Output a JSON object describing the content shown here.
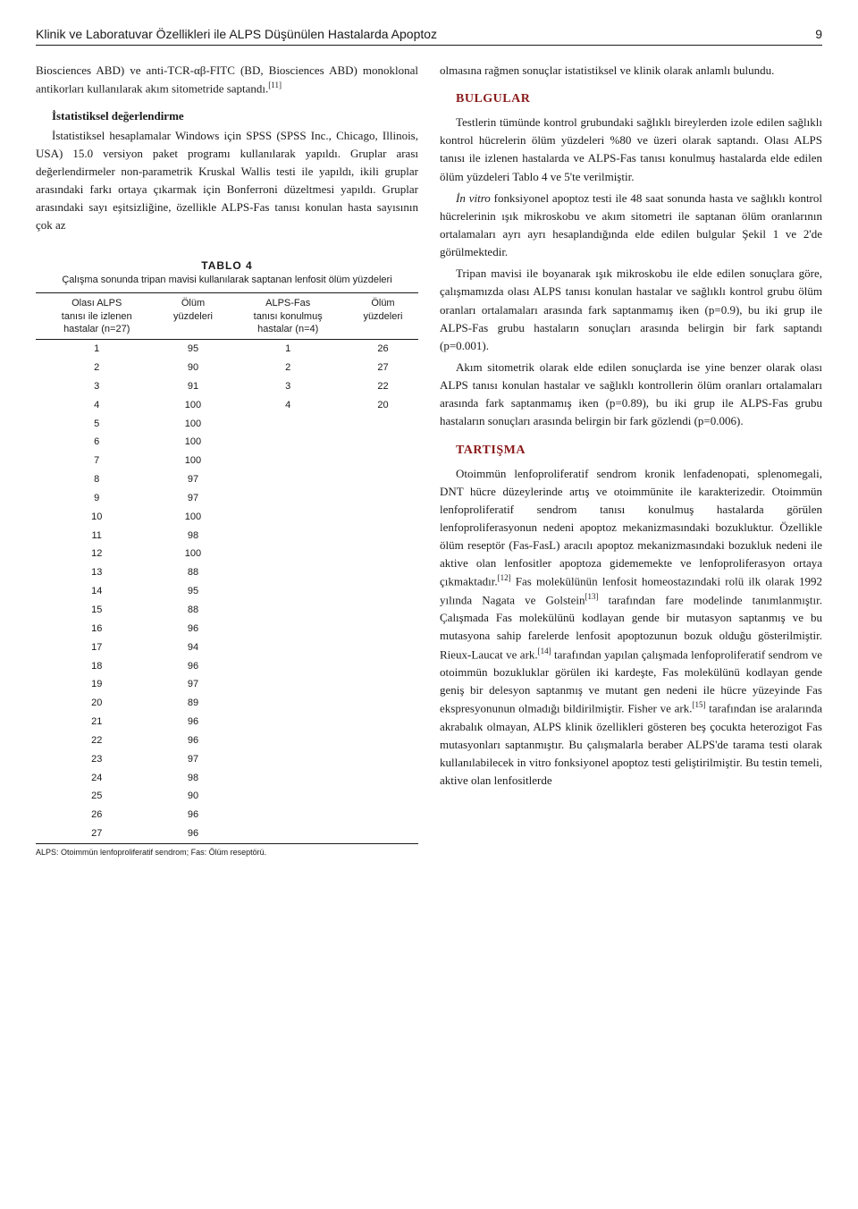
{
  "header": {
    "running_title": "Klinik ve Laboratuvar Özellikleri ile ALPS Düşünülen Hastalarda Apoptoz",
    "page": "9"
  },
  "left": {
    "p1": "Biosciences ABD) ve anti-TCR-αβ-FITC (BD, Biosciences ABD) monoklonal antikorları kullanılarak akım sitometride saptandı.",
    "sup1": "[11]",
    "sub1": "İstatistiksel değerlendirme",
    "p2": "İstatistiksel hesaplamalar Windows için SPSS (SPSS Inc., Chicago, Illinois, USA) 15.0 versiyon paket programı kullanılarak yapıldı. Gruplar arası değerlendirmeler non-parametrik Kruskal Wallis testi ile yapıldı, ikili gruplar arasındaki farkı ortaya çıkarmak için Bonferroni düzeltmesi yapıldı. Gruplar arasındaki sayı eşitsizliğine, özellikle ALPS-Fas tanısı konulan hasta sayısının çok az"
  },
  "table4": {
    "title": "TABLO 4",
    "caption": "Çalışma sonunda tripan mavisi kullanılarak saptanan lenfosit ölüm yüzdeleri",
    "columns": {
      "c1a": "Olası ALPS",
      "c1b": "tanısı ile izlenen",
      "c1c": "hastalar (n=27)",
      "c2a": "Ölüm",
      "c2b": "yüzdeleri",
      "c3a": "ALPS-Fas",
      "c3b": "tanısı konulmuş",
      "c3c": "hastalar (n=4)",
      "c4a": "Ölüm",
      "c4b": "yüzdeleri"
    },
    "rows": [
      [
        "1",
        "95",
        "1",
        "26"
      ],
      [
        "2",
        "90",
        "2",
        "27"
      ],
      [
        "3",
        "91",
        "3",
        "22"
      ],
      [
        "4",
        "100",
        "4",
        "20"
      ],
      [
        "5",
        "100",
        "",
        ""
      ],
      [
        "6",
        "100",
        "",
        ""
      ],
      [
        "7",
        "100",
        "",
        ""
      ],
      [
        "8",
        "97",
        "",
        ""
      ],
      [
        "9",
        "97",
        "",
        ""
      ],
      [
        "10",
        "100",
        "",
        ""
      ],
      [
        "11",
        "98",
        "",
        ""
      ],
      [
        "12",
        "100",
        "",
        ""
      ],
      [
        "13",
        "88",
        "",
        ""
      ],
      [
        "14",
        "95",
        "",
        ""
      ],
      [
        "15",
        "88",
        "",
        ""
      ],
      [
        "16",
        "96",
        "",
        ""
      ],
      [
        "17",
        "94",
        "",
        ""
      ],
      [
        "18",
        "96",
        "",
        ""
      ],
      [
        "19",
        "97",
        "",
        ""
      ],
      [
        "20",
        "89",
        "",
        ""
      ],
      [
        "21",
        "96",
        "",
        ""
      ],
      [
        "22",
        "96",
        "",
        ""
      ],
      [
        "23",
        "97",
        "",
        ""
      ],
      [
        "24",
        "98",
        "",
        ""
      ],
      [
        "25",
        "90",
        "",
        ""
      ],
      [
        "26",
        "96",
        "",
        ""
      ],
      [
        "27",
        "96",
        "",
        ""
      ]
    ],
    "footnote": "ALPS: Otoimmün lenfoproliferatif sendrom; Fas: Ölüm reseptörü."
  },
  "right": {
    "p1": "olmasına rağmen sonuçlar istatistiksel ve klinik olarak anlamlı bulundu.",
    "h_bulgular": "BULGULAR",
    "p2": "Testlerin tümünde kontrol grubundaki sağlıklı bireylerden izole edilen sağlıklı kontrol hücrelerin ölüm yüzdeleri %80 ve üzeri olarak saptandı. Olası ALPS tanısı ile izlenen hastalarda ve ALPS-Fas tanısı konulmuş hastalarda elde edilen ölüm yüzdeleri Tablo 4 ve 5'te verilmiştir.",
    "p3": "İn vitro fonksiyonel apoptoz testi ile 48 saat sonunda hasta ve sağlıklı kontrol hücrelerinin ışık mikroskobu ve akım sitometri ile saptanan ölüm oranlarının ortalamaları ayrı ayrı hesaplandığında elde edilen bulgular Şekil 1 ve 2'de görülmektedir.",
    "p4": "Tripan mavisi ile boyanarak ışık mikroskobu ile elde edilen sonuçlara göre, çalışmamızda olası ALPS tanısı konulan hastalar ve sağlıklı kontrol grubu ölüm oranları ortalamaları arasında fark saptanmamış iken (p=0.9), bu iki grup ile ALPS-Fas grubu hastaların sonuçları arasında belirgin bir fark saptandı (p=0.001).",
    "p5": "Akım sitometrik olarak elde edilen sonuçlarda ise yine benzer olarak olası ALPS tanısı konulan hastalar ve sağlıklı kontrollerin ölüm oranları ortalamaları arasında fark saptanmamış iken (p=0.89), bu iki grup ile ALPS-Fas grubu hastaların sonuçları arasında belirgin bir fark gözlendi (p=0.006).",
    "h_tartisma": "TARTIŞMA",
    "p6a": "Otoimmün lenfoproliferatif sendrom kronik lenfadenopati, splenomegali, DNT hücre düzeylerinde artış ve otoimmünite ile karakterizedir. Otoimmün lenfoproliferatif sendrom tanısı konulmuş hastalarda görülen lenfoproliferasyonun nedeni apoptoz mekanizmasındaki bozukluktur. Özellikle ölüm reseptör (Fas-FasL) aracılı apoptoz mekanizmasındaki bozukluk nedeni ile aktive olan lenfositler apoptoza gidememekte ve lenfoproliferasyon ortaya çıkmaktadır.",
    "sup12": "[12]",
    "p6b": " Fas molekülünün lenfosit homeostazındaki rolü ilk olarak 1992 yılında Nagata ve Golstein",
    "sup13": "[13]",
    "p6c": " tarafından fare modelinde tanımlanmıştır. Çalışmada Fas molekülünü kodlayan gende bir mutasyon saptanmış ve bu mutasyona sahip farelerde lenfosit apoptozunun bozuk olduğu gösterilmiştir. Rieux-Laucat ve ark.",
    "sup14": "[14]",
    "p6d": " tarafından yapılan çalışmada lenfoproliferatif sendrom ve otoimmün bozukluklar görülen iki kardeşte, Fas molekülünü kodlayan gende geniş bir delesyon saptanmış ve mutant gen nedeni ile hücre yüzeyinde Fas ekspresyonunun olmadığı bildirilmiştir. Fisher ve ark.",
    "sup15": "[15]",
    "p6e": " tarafından ise aralarında akrabalık olmayan, ALPS klinik özellikleri gösteren beş çocukta heterozigot Fas mutasyonları saptanmıştır. Bu çalışmalarla beraber ALPS'de tarama testi olarak kullanılabilecek in vitro fonksiyonel apoptoz testi geliştirilmiştir. Bu testin temeli, aktive olan lenfositlerde"
  },
  "italic_invitro": "İn vitro"
}
